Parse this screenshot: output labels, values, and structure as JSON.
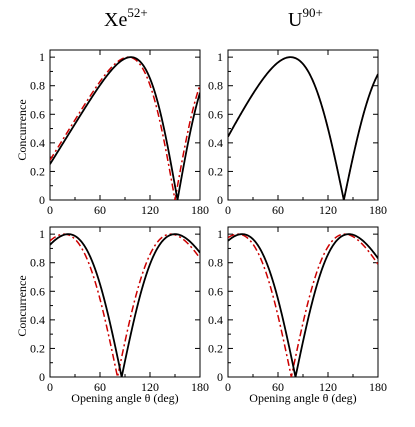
{
  "figure": {
    "column_titles": [
      {
        "base": "Xe",
        "sup": "52+"
      },
      {
        "base": "U",
        "sup": "90+"
      }
    ],
    "ylabel": "Concurrence",
    "xlabel": "Opening angle θ (deg)",
    "x_ticks": [
      "0",
      "60",
      "120",
      "180"
    ],
    "y_ticks": [
      "0",
      "0.2",
      "0.4",
      "0.6",
      "0.8",
      "1"
    ]
  },
  "chart_data": [
    {
      "type": "line",
      "panel": "top-left",
      "xlim": [
        0,
        180
      ],
      "ylim": [
        0,
        1.05
      ],
      "series": [
        {
          "style": "solid",
          "color": "#000000",
          "min_x": 153,
          "width": 0.85
        },
        {
          "style": "dash-dot",
          "color": "#cc0000",
          "min_x": 150,
          "width": 0.85
        }
      ]
    },
    {
      "type": "line",
      "panel": "top-right",
      "xlim": [
        0,
        180
      ],
      "ylim": [
        0,
        1.05
      ],
      "series": [
        {
          "style": "solid",
          "color": "#000000",
          "min_x": 139,
          "width": 1.0
        },
        {
          "style": "dash-dot",
          "color": "#cc0000",
          "min_x": 139,
          "width": 1.0
        }
      ]
    },
    {
      "type": "line",
      "panel": "bottom-left",
      "xlim": [
        0,
        180
      ],
      "ylim": [
        0,
        1.05
      ],
      "series": [
        {
          "style": "solid",
          "color": "#000000",
          "min_x": 86,
          "width": 1.0
        },
        {
          "style": "dash-dot",
          "color": "#cc0000",
          "min_x": 81,
          "width": 1.0
        }
      ]
    },
    {
      "type": "line",
      "panel": "bottom-right",
      "xlim": [
        0,
        180
      ],
      "ylim": [
        0,
        1.05
      ],
      "series": [
        {
          "style": "solid",
          "color": "#000000",
          "min_x": 81,
          "width": 1.0
        },
        {
          "style": "dash-dot",
          "color": "#cc0000",
          "min_x": 76,
          "width": 1.0
        }
      ]
    }
  ]
}
